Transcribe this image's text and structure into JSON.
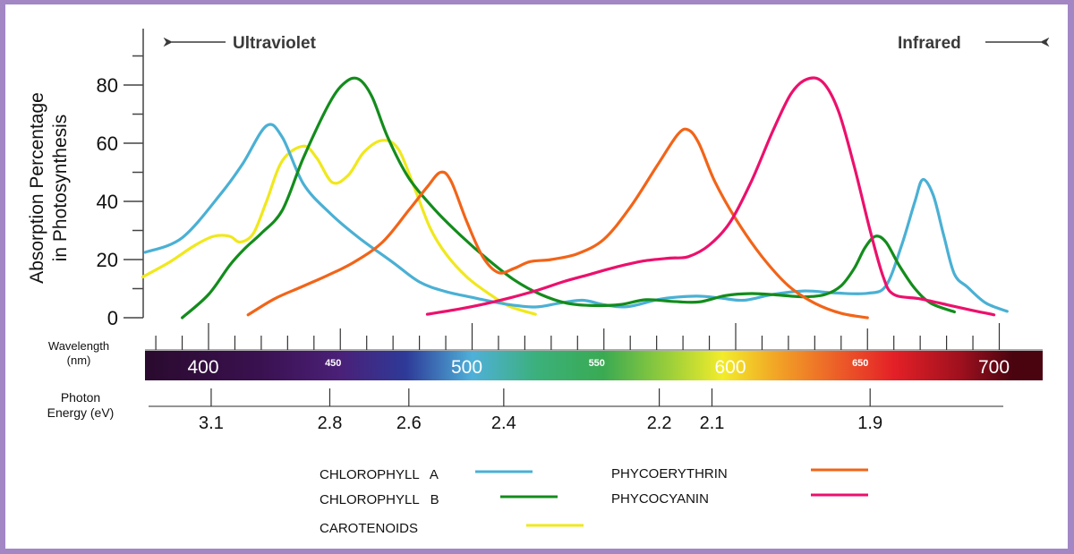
{
  "chart_data": {
    "type": "line",
    "title": "",
    "xlabel": "Wavelength (nm)",
    "ylabel": "Absorption Percentage in Photosynthesis",
    "secondary_xlabel": "Photon Energy (eV)",
    "xlim": [
      375,
      705
    ],
    "ylim": [
      0,
      90
    ],
    "grid": false,
    "legend_position": "bottom",
    "y_ticks_major": [
      0,
      20,
      40,
      60,
      80
    ],
    "y_ticks_minor": [
      10,
      30,
      50,
      70,
      90
    ],
    "wavelength_ticks": [
      380,
      390,
      400,
      410,
      420,
      430,
      440,
      450,
      460,
      470,
      480,
      490,
      500,
      510,
      520,
      530,
      540,
      550,
      560,
      570,
      580,
      590,
      600,
      610,
      620,
      630,
      640,
      650,
      660,
      670,
      680,
      690,
      700
    ],
    "wavelength_labels": [
      {
        "value": 400,
        "text": "400",
        "size": "large"
      },
      {
        "value": 450,
        "text": "450",
        "size": "small"
      },
      {
        "value": 500,
        "text": "500",
        "size": "large"
      },
      {
        "value": 550,
        "text": "550",
        "size": "small"
      },
      {
        "value": 600,
        "text": "600",
        "size": "large"
      },
      {
        "value": 650,
        "text": "650",
        "size": "small"
      },
      {
        "value": 700,
        "text": "700",
        "size": "large"
      }
    ],
    "energy_ticks": [
      {
        "wavelength": 401,
        "text": "3.1"
      },
      {
        "wavelength": 446,
        "text": "2.8"
      },
      {
        "wavelength": 476,
        "text": "2.6"
      },
      {
        "wavelength": 512,
        "text": "2.4"
      },
      {
        "wavelength": 571,
        "text": "2.2"
      },
      {
        "wavelength": 591,
        "text": "2.1"
      },
      {
        "wavelength": 651,
        "text": "1.9"
      }
    ],
    "spectrum_colors": [
      {
        "wavelength": 375,
        "color": "#2a0a2e"
      },
      {
        "wavelength": 420,
        "color": "#3a1150"
      },
      {
        "wavelength": 450,
        "color": "#4a2078"
      },
      {
        "wavelength": 475,
        "color": "#2e3a98"
      },
      {
        "wavelength": 500,
        "color": "#4fb0d8"
      },
      {
        "wavelength": 525,
        "color": "#3bb07a"
      },
      {
        "wavelength": 550,
        "color": "#3aaa52"
      },
      {
        "wavelength": 575,
        "color": "#9ccf3a"
      },
      {
        "wavelength": 595,
        "color": "#f2ec2a"
      },
      {
        "wavelength": 615,
        "color": "#f2a626"
      },
      {
        "wavelength": 640,
        "color": "#ec5a28"
      },
      {
        "wavelength": 660,
        "color": "#e42027"
      },
      {
        "wavelength": 685,
        "color": "#a0101e"
      },
      {
        "wavelength": 705,
        "color": "#4a0410"
      }
    ],
    "annotations": [
      {
        "text": "Ultraviolet",
        "direction": "left"
      },
      {
        "text": "Infrared",
        "direction": "right"
      }
    ],
    "series": [
      {
        "name": "CHLOROPHYLL A",
        "color": "#4ab0d4",
        "points": [
          [
            376,
            22.5
          ],
          [
            390,
            27.5
          ],
          [
            405,
            43
          ],
          [
            413,
            53
          ],
          [
            422,
            66
          ],
          [
            428,
            62
          ],
          [
            436,
            46
          ],
          [
            446,
            36
          ],
          [
            457,
            27.5
          ],
          [
            470,
            19
          ],
          [
            480,
            12.3
          ],
          [
            490,
            9
          ],
          [
            501,
            6.8
          ],
          [
            512,
            4.8
          ],
          [
            524,
            3.7
          ],
          [
            533,
            5
          ],
          [
            542,
            6
          ],
          [
            550,
            4.5
          ],
          [
            559,
            3.8
          ],
          [
            572,
            6.5
          ],
          [
            585,
            7.4
          ],
          [
            594,
            6.8
          ],
          [
            603,
            6
          ],
          [
            614,
            8
          ],
          [
            626,
            9.2
          ],
          [
            638,
            8.5
          ],
          [
            650,
            8.4
          ],
          [
            657,
            11
          ],
          [
            663,
            25
          ],
          [
            668,
            40
          ],
          [
            671,
            47.5
          ],
          [
            675,
            42
          ],
          [
            679,
            28
          ],
          [
            683,
            15
          ],
          [
            688,
            10.5
          ],
          [
            695,
            5
          ],
          [
            703,
            2.2
          ]
        ]
      },
      {
        "name": "CHLOROPHYLL B",
        "color": "#138c1c",
        "points": [
          [
            390,
            0
          ],
          [
            400,
            8
          ],
          [
            408,
            18
          ],
          [
            414,
            24
          ],
          [
            420,
            29
          ],
          [
            428,
            37
          ],
          [
            436,
            55
          ],
          [
            446,
            74
          ],
          [
            452,
            81
          ],
          [
            457,
            82
          ],
          [
            462,
            76
          ],
          [
            468,
            62
          ],
          [
            476,
            48
          ],
          [
            486,
            37
          ],
          [
            496,
            28
          ],
          [
            506,
            20
          ],
          [
            516,
            13
          ],
          [
            526,
            8
          ],
          [
            536,
            5
          ],
          [
            546,
            4.2
          ],
          [
            556,
            4.5
          ],
          [
            566,
            6.2
          ],
          [
            576,
            5.6
          ],
          [
            586,
            5.4
          ],
          [
            596,
            7.6
          ],
          [
            606,
            8.3
          ],
          [
            616,
            7.8
          ],
          [
            626,
            7.2
          ],
          [
            634,
            8
          ],
          [
            640,
            11
          ],
          [
            645,
            17
          ],
          [
            649,
            24
          ],
          [
            653,
            28
          ],
          [
            657,
            26
          ],
          [
            662,
            18
          ],
          [
            668,
            10
          ],
          [
            674,
            5
          ],
          [
            683,
            2
          ]
        ]
      },
      {
        "name": "CAROTENOIDS",
        "color": "#f0e81c",
        "points": [
          [
            375,
            14
          ],
          [
            385,
            19
          ],
          [
            395,
            25
          ],
          [
            402,
            28
          ],
          [
            408,
            28
          ],
          [
            412,
            26
          ],
          [
            417,
            29
          ],
          [
            422,
            40
          ],
          [
            428,
            54
          ],
          [
            436,
            59
          ],
          [
            441,
            55
          ],
          [
            447,
            46.5
          ],
          [
            453,
            49
          ],
          [
            459,
            57
          ],
          [
            466,
            61
          ],
          [
            472,
            58
          ],
          [
            478,
            45
          ],
          [
            484,
            31
          ],
          [
            490,
            22
          ],
          [
            498,
            14
          ],
          [
            506,
            8.5
          ],
          [
            514,
            4
          ],
          [
            524,
            1.2
          ]
        ]
      },
      {
        "name": "PHYCOERYTHRIN",
        "color": "#f26418",
        "points": [
          [
            415,
            1
          ],
          [
            425,
            6.5
          ],
          [
            435,
            10.5
          ],
          [
            445,
            14.5
          ],
          [
            455,
            19
          ],
          [
            466,
            26
          ],
          [
            476,
            37
          ],
          [
            483,
            45
          ],
          [
            488,
            50
          ],
          [
            492,
            47
          ],
          [
            498,
            33
          ],
          [
            504,
            21
          ],
          [
            510,
            15.5
          ],
          [
            516,
            17
          ],
          [
            522,
            19.3
          ],
          [
            530,
            20
          ],
          [
            540,
            22
          ],
          [
            550,
            27
          ],
          [
            560,
            38
          ],
          [
            570,
            52
          ],
          [
            578,
            63
          ],
          [
            582,
            64.6
          ],
          [
            586,
            60
          ],
          [
            592,
            47
          ],
          [
            600,
            34
          ],
          [
            610,
            21
          ],
          [
            620,
            11
          ],
          [
            630,
            5
          ],
          [
            640,
            1.5
          ],
          [
            650,
            0
          ]
        ]
      },
      {
        "name": "PHYCOCYANIN",
        "color": "#ec106c",
        "points": [
          [
            483,
            1.2
          ],
          [
            495,
            3
          ],
          [
            505,
            4.8
          ],
          [
            515,
            7
          ],
          [
            525,
            9.5
          ],
          [
            535,
            12.5
          ],
          [
            545,
            15
          ],
          [
            555,
            17.5
          ],
          [
            565,
            19.5
          ],
          [
            575,
            20.5
          ],
          [
            582,
            21
          ],
          [
            590,
            25
          ],
          [
            598,
            33
          ],
          [
            606,
            47
          ],
          [
            614,
            64
          ],
          [
            621,
            77
          ],
          [
            627,
            82
          ],
          [
            633,
            81
          ],
          [
            639,
            71
          ],
          [
            645,
            52
          ],
          [
            651,
            30
          ],
          [
            656,
            14
          ],
          [
            660,
            8
          ],
          [
            670,
            6.5
          ],
          [
            680,
            4.5
          ],
          [
            690,
            2.5
          ],
          [
            698,
            1
          ]
        ]
      }
    ]
  },
  "legend": {
    "items": [
      {
        "label": "CHLOROPHYLL   A",
        "color": "#4ab0d4"
      },
      {
        "label": "CHLOROPHYLL   B",
        "color": "#138c1c"
      },
      {
        "label": "CAROTENOIDS",
        "color": "#f0e81c"
      },
      {
        "label": "PHYCOERYTHRIN",
        "color": "#f26418"
      },
      {
        "label": "PHYCOCYANIN",
        "color": "#ec106c"
      }
    ]
  },
  "axis_labels": {
    "y_line1": "Absorption Percentage",
    "y_line2": "in Photosynthesis",
    "wavelength_line1": "Wavelength",
    "wavelength_line2": "(nm)",
    "energy_line1": "Photon",
    "energy_line2": "Energy (eV)"
  }
}
